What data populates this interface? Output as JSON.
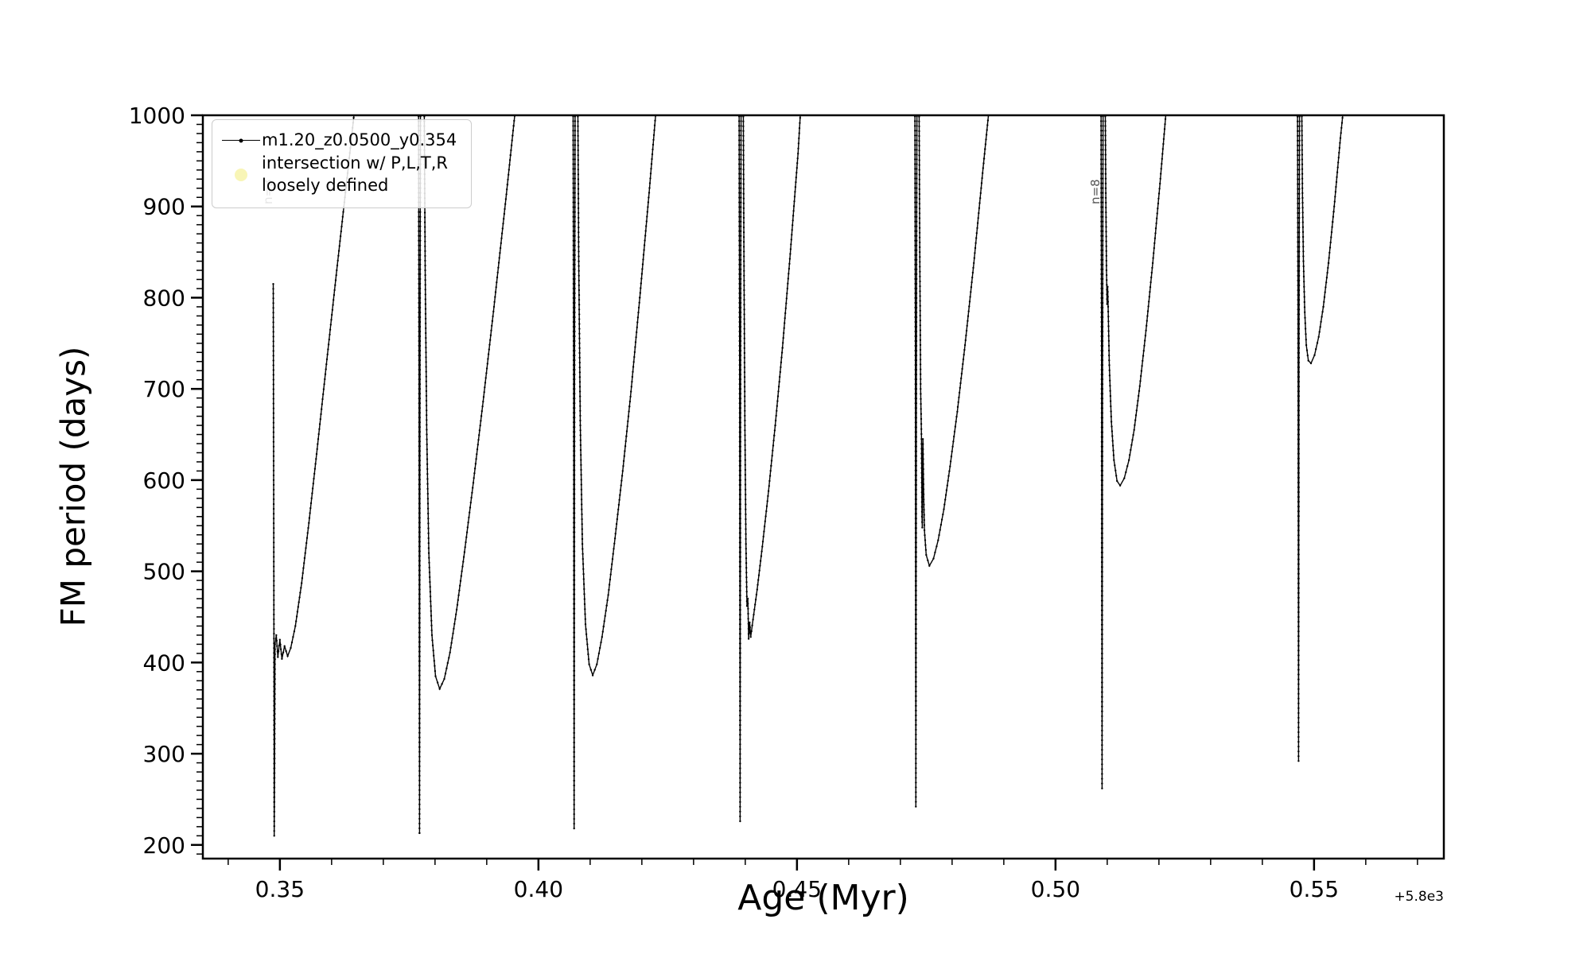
{
  "figure": {
    "background": "#ffffff",
    "line_color": "#000000",
    "annotation_color": "#555555"
  },
  "chart_data": {
    "type": "line",
    "title": "",
    "xlabel": "Age (Myr)",
    "ylabel": "FM period (days)",
    "x_offset_label": "+5.8e3",
    "xlim": [
      0.3351,
      0.5751
    ],
    "ylim": [
      185,
      1000
    ],
    "grid": false,
    "x_minor_step": 0.01,
    "y_minor_step": 10,
    "xticks": [
      {
        "v": 0.35,
        "label": "0.35"
      },
      {
        "v": 0.4,
        "label": "0.40"
      },
      {
        "v": 0.45,
        "label": "0.45"
      },
      {
        "v": 0.5,
        "label": "0.50"
      },
      {
        "v": 0.55,
        "label": "0.55"
      }
    ],
    "yticks": [
      {
        "v": 200,
        "label": "200"
      },
      {
        "v": 300,
        "label": "300"
      },
      {
        "v": 400,
        "label": "400"
      },
      {
        "v": 500,
        "label": "500"
      },
      {
        "v": 600,
        "label": "600"
      },
      {
        "v": 700,
        "label": "700"
      },
      {
        "v": 800,
        "label": "800"
      },
      {
        "v": 900,
        "label": "900"
      },
      {
        "v": 1000,
        "label": "1000"
      }
    ],
    "legend": {
      "position": "upper-left",
      "entries": [
        {
          "type": "line-marker",
          "color": "#000000",
          "label": "m1.20_z0.0500_y0.354"
        },
        {
          "type": "circle",
          "color": "#efe95e",
          "label": "intersection w/ P,L,T,R",
          "label2": "loosely defined"
        }
      ]
    },
    "annotations": [
      {
        "label": "n=3",
        "x": 0.34845,
        "y": 930,
        "rotation": 90
      },
      {
        "label": "n=8",
        "x": 0.50845,
        "y": 930,
        "rotation": 90
      }
    ],
    "series": [
      {
        "name": "m1.20_z0.0500_y0.354",
        "color": "#000000",
        "marker": "point",
        "structures": [
          [
            [
              0.34872,
              815
            ],
            [
              0.3488,
              600
            ],
            [
              0.34886,
              400
            ],
            [
              0.3489,
              210
            ],
            [
              0.34898,
              300
            ],
            [
              0.34906,
              420
            ],
            [
              0.3493,
              430
            ],
            [
              0.3496,
              406
            ],
            [
              0.35,
              425
            ],
            [
              0.3504,
              404
            ],
            [
              0.3509,
              418
            ],
            [
              0.3515,
              407
            ],
            [
              0.3521,
              416
            ],
            [
              0.353,
              440
            ],
            [
              0.3542,
              487
            ],
            [
              0.3556,
              553
            ],
            [
              0.3572,
              634
            ],
            [
              0.359,
              727
            ],
            [
              0.361,
              830
            ],
            [
              0.3632,
              942
            ],
            [
              0.3648,
              1025
            ]
          ],
          [
            [
              0.3768,
              1025
            ],
            [
              0.37692,
              700
            ],
            [
              0.377,
              213
            ],
            [
              0.37708,
              700
            ],
            [
              0.3772,
              1025
            ],
            [
              0.3779,
              1025
            ],
            [
              0.3781,
              830
            ],
            [
              0.3784,
              650
            ],
            [
              0.3788,
              520
            ],
            [
              0.3794,
              430
            ],
            [
              0.3801,
              385
            ],
            [
              0.3809,
              371
            ],
            [
              0.3818,
              382
            ],
            [
              0.3829,
              411
            ],
            [
              0.3842,
              458
            ],
            [
              0.3857,
              521
            ],
            [
              0.3874,
              597
            ],
            [
              0.3893,
              686
            ],
            [
              0.3914,
              790
            ],
            [
              0.3937,
              908
            ],
            [
              0.3956,
              1010
            ],
            [
              0.3959,
              1025
            ]
          ],
          [
            [
              0.4067,
              1025
            ],
            [
              0.40682,
              700
            ],
            [
              0.4069,
              218
            ],
            [
              0.40698,
              700
            ],
            [
              0.4071,
              1025
            ],
            [
              0.4076,
              1025
            ],
            [
              0.4078,
              840
            ],
            [
              0.4081,
              660
            ],
            [
              0.4085,
              530
            ],
            [
              0.4091,
              442
            ],
            [
              0.4098,
              398
            ],
            [
              0.4105,
              386
            ],
            [
              0.4113,
              398
            ],
            [
              0.4123,
              428
            ],
            [
              0.4135,
              474
            ],
            [
              0.4148,
              536
            ],
            [
              0.4163,
              610
            ],
            [
              0.4179,
              697
            ],
            [
              0.4196,
              800
            ],
            [
              0.4214,
              915
            ],
            [
              0.4228,
              1010
            ],
            [
              0.4231,
              1025
            ]
          ],
          [
            [
              0.4388,
              1025
            ],
            [
              0.43892,
              700
            ],
            [
              0.439,
              226
            ],
            [
              0.43908,
              700
            ],
            [
              0.4392,
              1025
            ],
            [
              0.4396,
              1025
            ],
            [
              0.43975,
              840
            ],
            [
              0.43993,
              660
            ],
            [
              0.44013,
              530
            ],
            [
              0.44033,
              462
            ],
            [
              0.4405,
              470
            ],
            [
              0.44066,
              426
            ],
            [
              0.44085,
              444
            ],
            [
              0.44105,
              428
            ],
            [
              0.4415,
              447
            ],
            [
              0.4423,
              480
            ],
            [
              0.4433,
              527
            ],
            [
              0.4445,
              588
            ],
            [
              0.4458,
              660
            ],
            [
              0.4472,
              745
            ],
            [
              0.4487,
              848
            ],
            [
              0.4502,
              958
            ],
            [
              0.4509,
              1025
            ]
          ],
          [
            [
              0.4728,
              1025
            ],
            [
              0.47292,
              700
            ],
            [
              0.473,
              242
            ],
            [
              0.47308,
              700
            ],
            [
              0.4732,
              1025
            ],
            [
              0.4736,
              1025
            ],
            [
              0.47375,
              850
            ],
            [
              0.47392,
              700
            ],
            [
              0.47408,
              645
            ],
            [
              0.47418,
              560
            ],
            [
              0.47424,
              548
            ],
            [
              0.4743,
              610
            ],
            [
              0.47436,
              645
            ],
            [
              0.47448,
              590
            ],
            [
              0.47465,
              545
            ],
            [
              0.475,
              518
            ],
            [
              0.4756,
              506
            ],
            [
              0.4764,
              514
            ],
            [
              0.4773,
              534
            ],
            [
              0.4784,
              568
            ],
            [
              0.4796,
              615
            ],
            [
              0.481,
              675
            ],
            [
              0.4825,
              748
            ],
            [
              0.4842,
              838
            ],
            [
              0.486,
              942
            ],
            [
              0.4872,
              1010
            ],
            [
              0.4874,
              1025
            ]
          ],
          [
            [
              0.5088,
              1025
            ],
            [
              0.50892,
              700
            ],
            [
              0.509,
              262
            ],
            [
              0.50908,
              700
            ],
            [
              0.5092,
              1025
            ],
            [
              0.5096,
              1025
            ],
            [
              0.50972,
              920
            ],
            [
              0.50986,
              830
            ],
            [
              0.50998,
              793
            ],
            [
              0.51008,
              812
            ],
            [
              0.51018,
              790
            ],
            [
              0.5104,
              726
            ],
            [
              0.5108,
              664
            ],
            [
              0.5113,
              622
            ],
            [
              0.5119,
              599
            ],
            [
              0.5125,
              594
            ],
            [
              0.5133,
              602
            ],
            [
              0.5142,
              622
            ],
            [
              0.5152,
              655
            ],
            [
              0.5163,
              703
            ],
            [
              0.5175,
              764
            ],
            [
              0.5188,
              838
            ],
            [
              0.5202,
              925
            ],
            [
              0.5215,
              1012
            ],
            [
              0.5217,
              1025
            ]
          ],
          [
            [
              0.5468,
              1025
            ],
            [
              0.54692,
              750
            ],
            [
              0.547,
              292
            ],
            [
              0.54708,
              750
            ],
            [
              0.5472,
              1025
            ],
            [
              0.5476,
              1025
            ],
            [
              0.54775,
              920
            ],
            [
              0.54795,
              840
            ],
            [
              0.5482,
              784
            ],
            [
              0.5485,
              748
            ],
            [
              0.5489,
              731
            ],
            [
              0.5494,
              728
            ],
            [
              0.5501,
              737
            ],
            [
              0.5509,
              757
            ],
            [
              0.5518,
              790
            ],
            [
              0.5528,
              838
            ],
            [
              0.5539,
              900
            ],
            [
              0.5551,
              975
            ],
            [
              0.556,
              1025
            ]
          ]
        ]
      }
    ]
  }
}
